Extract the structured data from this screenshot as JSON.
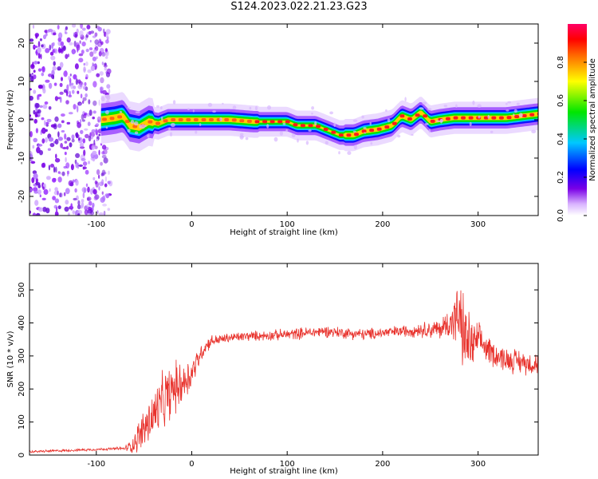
{
  "title": "S124.2023.022.21.23.G23",
  "colors": {
    "snr_line": "#e8312b",
    "axes": "#000000",
    "background": "#ffffff"
  },
  "chart_data": [
    {
      "type": "heatmap",
      "xlabel": "Height of straight line (km)",
      "ylabel": "Frequency (Hz)",
      "xlim": [
        -170,
        363
      ],
      "ylim": [
        -25,
        25
      ],
      "x_ticks": [
        -100,
        0,
        100,
        200,
        300
      ],
      "x_tick_labels": [
        "-100",
        "0",
        "100",
        "200",
        "300"
      ],
      "y_ticks": [
        -20,
        -10,
        0,
        10,
        20
      ],
      "y_tick_labels": [
        "-20",
        "-10",
        "0",
        "10",
        "20"
      ],
      "colorbar": {
        "label": "Normalized spectral amplitude",
        "range": [
          0,
          1
        ],
        "ticks": [
          0.0,
          0.2,
          0.4,
          0.6,
          0.8
        ],
        "tick_labels": [
          "0.0",
          "0.2",
          "0.4",
          "0.6",
          "0.8"
        ],
        "colormap": "rainbow"
      },
      "noise_region": {
        "x": [
          -170,
          -85
        ],
        "ylim": [
          -25,
          25
        ]
      },
      "ridge": {
        "x": [
          -95,
          -80,
          -72,
          -65,
          -55,
          -45,
          -35,
          -25,
          -10,
          0,
          20,
          40,
          65,
          80,
          100,
          110,
          130,
          145,
          155,
          170,
          180,
          195,
          210,
          220,
          230,
          240,
          250,
          260,
          275,
          300,
          330,
          363
        ],
        "frequency": [
          0.0,
          0.5,
          1.0,
          -1.5,
          -2.0,
          -0.5,
          -1.0,
          0.0,
          0.0,
          0.0,
          0.0,
          0.0,
          -0.5,
          -0.5,
          -0.5,
          -1.5,
          -1.5,
          -3.0,
          -4.0,
          -4.0,
          -3.0,
          -2.5,
          -1.5,
          1.0,
          0.0,
          2.0,
          -0.5,
          0.0,
          0.5,
          0.5,
          0.5,
          1.5
        ]
      }
    },
    {
      "type": "line",
      "xlabel": "Height of straight line (km)",
      "ylabel": "SNR (10 * v/v)",
      "xlim": [
        -170,
        363
      ],
      "ylim": [
        0,
        580
      ],
      "x_ticks": [
        -100,
        0,
        100,
        200,
        300
      ],
      "x_tick_labels": [
        "-100",
        "0",
        "100",
        "200",
        "300"
      ],
      "y_ticks": [
        0,
        100,
        200,
        300,
        400,
        500
      ],
      "y_tick_labels": [
        "0",
        "100",
        "200",
        "300",
        "400",
        "500"
      ],
      "series": [
        {
          "color": "#e8312b",
          "x": [
            -170,
            -150,
            -120,
            -90,
            -70,
            -62,
            -55,
            -45,
            -35,
            -25,
            -15,
            -5,
            0,
            5,
            10,
            15,
            20,
            30,
            40,
            60,
            80,
            100,
            120,
            140,
            160,
            180,
            200,
            220,
            240,
            260,
            270,
            280,
            285,
            290,
            295,
            300,
            310,
            320,
            330,
            340,
            350,
            363
          ],
          "y": [
            10,
            12,
            15,
            18,
            20,
            30,
            60,
            100,
            140,
            180,
            210,
            230,
            250,
            280,
            310,
            330,
            345,
            350,
            355,
            360,
            362,
            365,
            370,
            375,
            370,
            365,
            370,
            375,
            380,
            380,
            400,
            420,
            360,
            340,
            330,
            350,
            320,
            300,
            290,
            285,
            280,
            275
          ],
          "noise_amplitude": [
            3,
            3,
            3,
            3,
            5,
            20,
            40,
            60,
            70,
            70,
            60,
            50,
            40,
            30,
            20,
            18,
            15,
            12,
            12,
            12,
            12,
            14,
            14,
            14,
            14,
            14,
            14,
            14,
            18,
            25,
            40,
            80,
            100,
            80,
            60,
            40,
            35,
            30,
            30,
            30,
            28,
            28
          ]
        }
      ]
    }
  ]
}
